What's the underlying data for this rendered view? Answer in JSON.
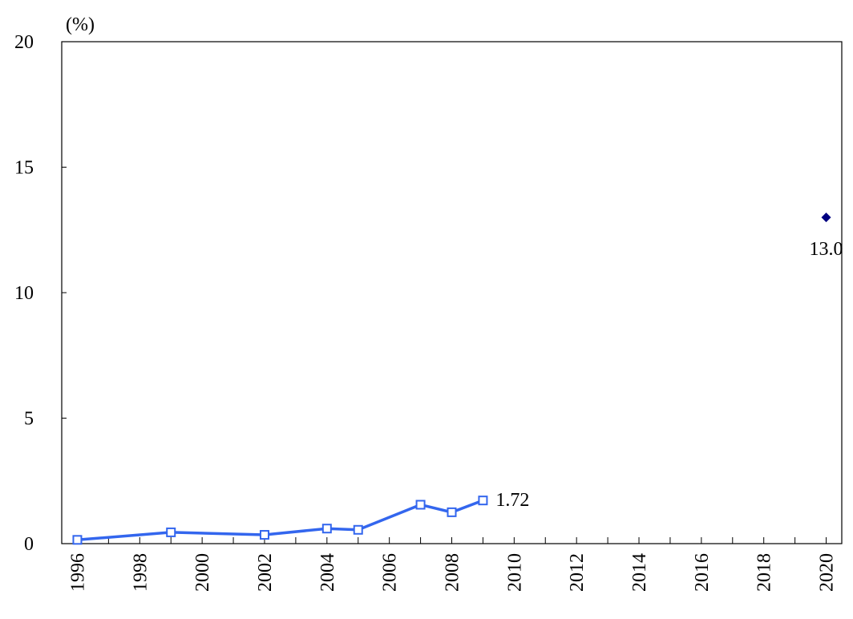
{
  "chart_data": {
    "type": "line",
    "y_unit": "(%)",
    "xlim": [
      1995.5,
      2020.5
    ],
    "ylim": [
      0,
      20
    ],
    "yticks": [
      0,
      5,
      10,
      15,
      20
    ],
    "xticks": [
      1996,
      1998,
      2000,
      2002,
      2004,
      2006,
      2008,
      2010,
      2012,
      2014,
      2016,
      2018,
      2020
    ],
    "xminorticks": [
      1997,
      1999,
      2001,
      2003,
      2005,
      2007,
      2009,
      2011,
      2013,
      2015,
      2017,
      2019
    ],
    "series": [
      {
        "color": "#3366ee",
        "marker": "square",
        "show_last_label": true,
        "x": [
          1996,
          1999,
          2002,
          2004,
          2005,
          2007,
          2008,
          2009
        ],
        "values": [
          0.15,
          0.45,
          0.35,
          0.6,
          0.55,
          1.55,
          1.25,
          1.72
        ]
      },
      {
        "color": "#000080",
        "marker": "diamond",
        "show_last_label": true,
        "x": [
          2020
        ],
        "values": [
          13
        ],
        "value_labels": [
          "13.0"
        ]
      }
    ]
  }
}
